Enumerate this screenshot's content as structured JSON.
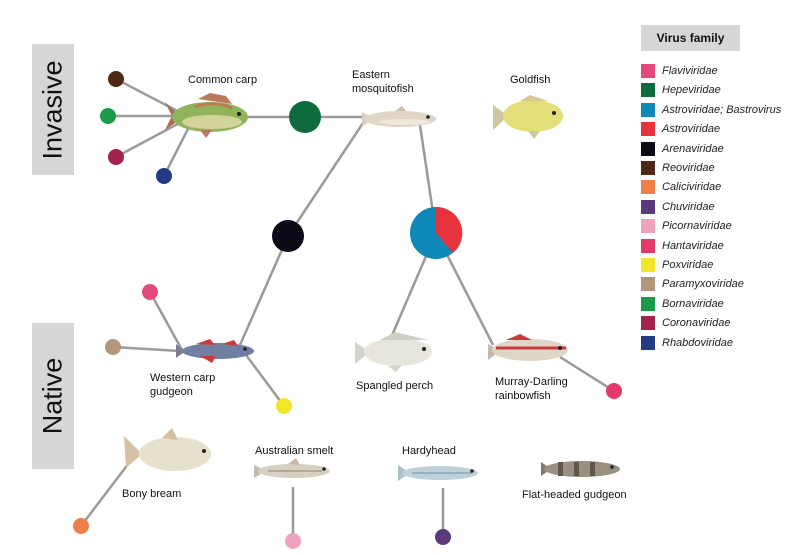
{
  "sections": {
    "invasive": "Invasive",
    "native": "Native"
  },
  "legend": {
    "title": "Virus family",
    "items": [
      {
        "label": "Flaviviridae",
        "color": "#e4497e"
      },
      {
        "label": "Hepeviridae",
        "color": "#0d6a3c"
      },
      {
        "label": "Astroviridae; Bastrovirus",
        "color": "#0e88b7"
      },
      {
        "label": "Astroviridae",
        "color": "#e6333e"
      },
      {
        "label": "Arenaviridae",
        "color": "#0d0a18"
      },
      {
        "label": "Reoviridae",
        "color": "#4f2815"
      },
      {
        "label": "Caliciviridae",
        "color": "#ee7f4a"
      },
      {
        "label": "Chuviridae",
        "color": "#5a3a7a"
      },
      {
        "label": "Picornaviridae",
        "color": "#eda3bd"
      },
      {
        "label": "Hantaviridae",
        "color": "#e33969"
      },
      {
        "label": "Poxviridae",
        "color": "#f3e528"
      },
      {
        "label": "Paramyxoviridae",
        "color": "#b4977a"
      },
      {
        "label": "Bornaviridae",
        "color": "#1a9b4b"
      },
      {
        "label": "Coronaviridae",
        "color": "#a3234f"
      },
      {
        "label": "Rhabdoviridae",
        "color": "#233a84"
      }
    ]
  },
  "fish": {
    "common_carp": {
      "label": "Common carp"
    },
    "mosquitofish": {
      "label_lines": [
        "Eastern",
        "mosquitofish"
      ]
    },
    "goldfish": {
      "label": "Goldfish"
    },
    "western_carp_gudgeon": {
      "label_lines": [
        "Western carp",
        "gudgeon"
      ]
    },
    "spangled_perch": {
      "label": "Spangled perch"
    },
    "rainbowfish": {
      "label_lines": [
        "Murray-Darling",
        "rainbowfish"
      ]
    },
    "bony_bream": {
      "label": "Bony bream"
    },
    "australian_smelt": {
      "label": "Australian smelt"
    },
    "hardyhead": {
      "label": "Hardyhead"
    },
    "flat_headed_gudgeon": {
      "label": "Flat-headed gudgeon"
    }
  }
}
